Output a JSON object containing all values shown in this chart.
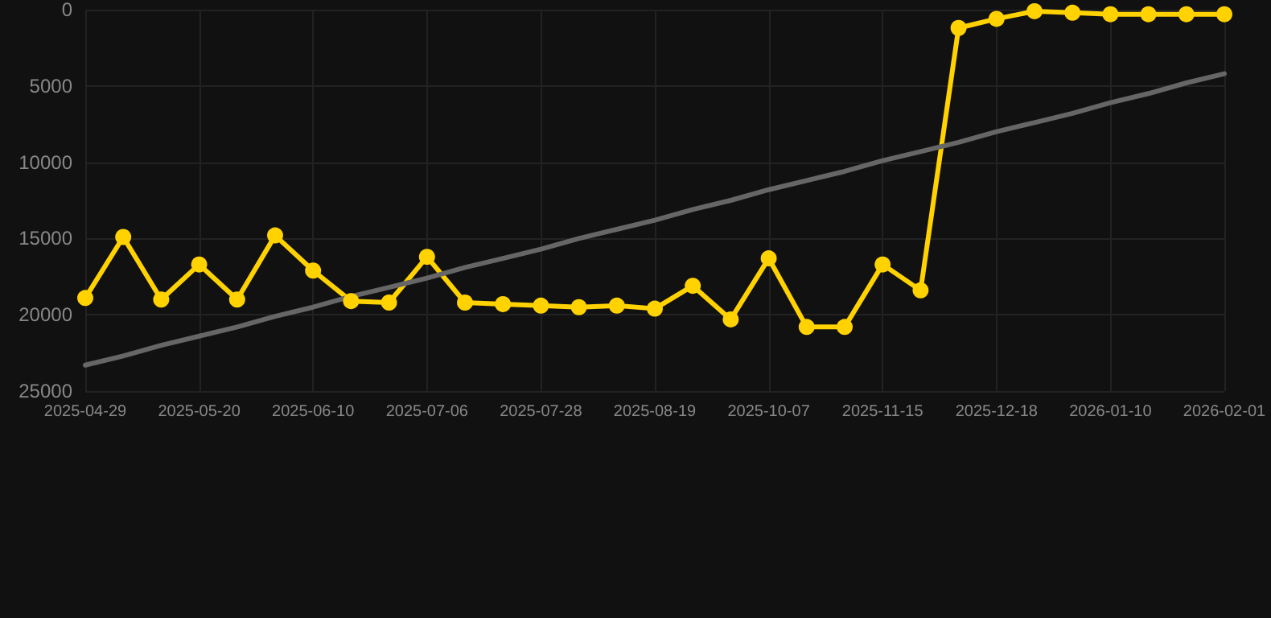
{
  "chart_data": {
    "type": "line",
    "categories": [
      "2025-04-29",
      null,
      null,
      "2025-05-20",
      null,
      null,
      "2025-06-10",
      null,
      null,
      "2025-07-06",
      null,
      null,
      "2025-07-28",
      null,
      null,
      "2025-08-19",
      null,
      null,
      "2025-10-07",
      null,
      null,
      "2025-11-15",
      null,
      null,
      "2025-12-18",
      null,
      null,
      "2026-01-10",
      null,
      null,
      "2026-02-01"
    ],
    "series": [
      {
        "color": "#ffd200",
        "values": [
          18900,
          14900,
          19000,
          16700,
          19000,
          14800,
          17100,
          19100,
          19200,
          16200,
          19200,
          19300,
          19400,
          19500,
          19400,
          19600,
          18100,
          20300,
          16300,
          20800,
          20800,
          16700,
          18400,
          1200,
          600,
          100,
          200,
          300,
          300,
          300,
          300
        ]
      },
      {
        "type": "line",
        "color": "#666666",
        "marker": "none",
        "values": [
          23300,
          22700,
          22000,
          21400,
          20800,
          20100,
          19500,
          18800,
          18200,
          17600,
          16900,
          16300,
          15700,
          15000,
          14400,
          13800,
          13100,
          12500,
          11800,
          11200,
          10600,
          9900,
          9300,
          8700,
          8000,
          7400,
          6800,
          6100,
          5500,
          4800,
          4200
        ]
      }
    ],
    "ylim": [
      25000,
      0
    ],
    "yticks": [
      0,
      5000,
      10000,
      15000,
      20000,
      25000
    ],
    "grid": true,
    "marker": "circle",
    "line_style": "solid"
  }
}
